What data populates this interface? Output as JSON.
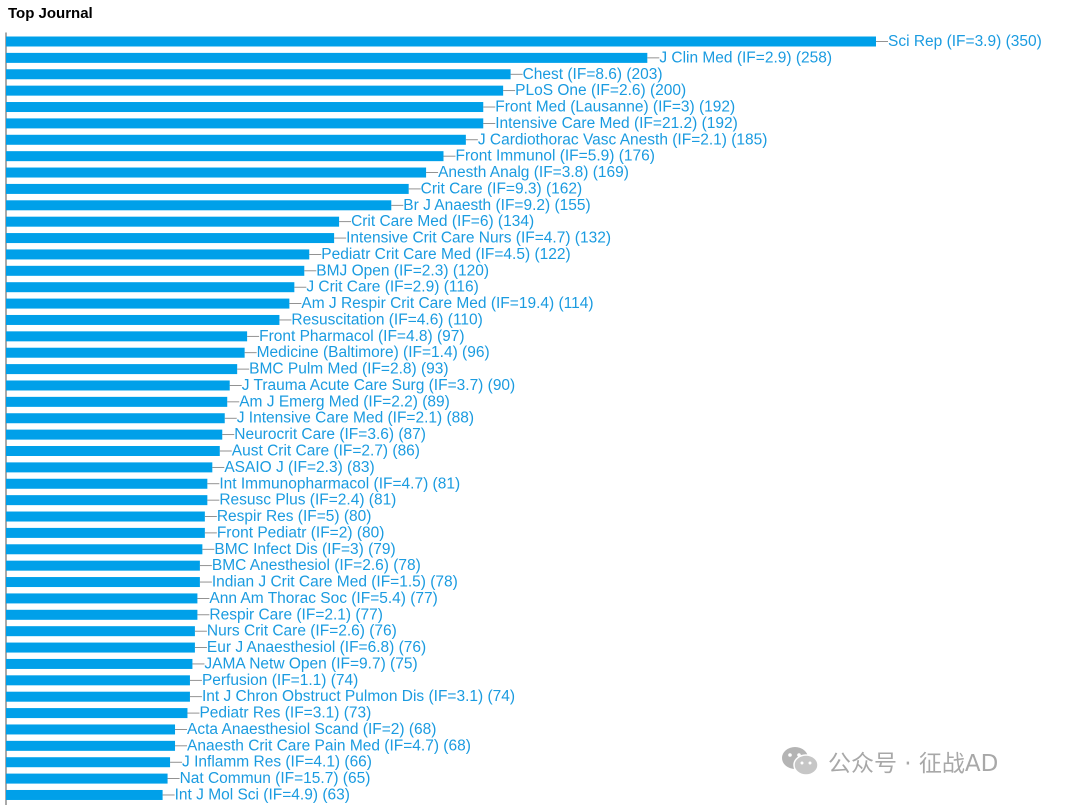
{
  "title": "Top Journal",
  "watermark": {
    "text": "公众号 · 征战AD",
    "icon": "wechat-icon"
  },
  "colors": {
    "bar": "#00a0e9",
    "label": "#1a9be0",
    "axis": "#555555"
  },
  "chart_data": {
    "type": "bar",
    "orientation": "horizontal",
    "title": "Top Journal",
    "xlim": [
      0,
      350
    ],
    "grid": false,
    "categories": [
      "Sci Rep (IF=3.9) (350)",
      "J Clin Med (IF=2.9) (258)",
      "Chest (IF=8.6) (203)",
      "PLoS One (IF=2.6) (200)",
      "Front Med (Lausanne) (IF=3) (192)",
      "Intensive Care Med (IF=21.2) (192)",
      "J Cardiothorac Vasc Anesth (IF=2.1) (185)",
      "Front Immunol (IF=5.9) (176)",
      "Anesth Analg (IF=3.8) (169)",
      "Crit Care (IF=9.3) (162)",
      "Br J Anaesth (IF=9.2) (155)",
      "Crit Care Med (IF=6) (134)",
      "Intensive Crit Care Nurs (IF=4.7) (132)",
      "Pediatr Crit Care Med (IF=4.5) (122)",
      "BMJ Open (IF=2.3) (120)",
      "J Crit Care (IF=2.9) (116)",
      "Am J Respir Crit Care Med (IF=19.4) (114)",
      "Resuscitation (IF=4.6) (110)",
      "Front Pharmacol (IF=4.8) (97)",
      "Medicine (Baltimore) (IF=1.4) (96)",
      "BMC Pulm Med (IF=2.8) (93)",
      "J Trauma Acute Care Surg (IF=3.7) (90)",
      "Am J Emerg Med (IF=2.2) (89)",
      "J Intensive Care Med (IF=2.1) (88)",
      "Neurocrit Care (IF=3.6) (87)",
      "Aust Crit Care (IF=2.7) (86)",
      "ASAIO J (IF=2.3) (83)",
      "Int Immunopharmacol (IF=4.7) (81)",
      "Resusc Plus (IF=2.4) (81)",
      "Respir Res (IF=5) (80)",
      "Front Pediatr (IF=2) (80)",
      "BMC Infect Dis (IF=3) (79)",
      "BMC Anesthesiol (IF=2.6) (78)",
      "Indian J Crit Care Med (IF=1.5) (78)",
      "Ann Am Thorac Soc (IF=5.4) (77)",
      "Respir Care (IF=2.1) (77)",
      "Nurs Crit Care (IF=2.6) (76)",
      "Eur J Anaesthesiol (IF=6.8) (76)",
      "JAMA Netw Open (IF=9.7) (75)",
      "Perfusion (IF=1.1) (74)",
      "Int J Chron Obstruct Pulmon Dis (IF=3.1) (74)",
      "Pediatr Res (IF=3.1) (73)",
      "Acta Anaesthesiol Scand (IF=2) (68)",
      "Anaesth Crit Care Pain Med (IF=4.7) (68)",
      "J Inflamm Res (IF=4.1) (66)",
      "Nat Commun (IF=15.7) (65)",
      "Int J Mol Sci (IF=4.9) (63)"
    ],
    "values": [
      350,
      258,
      203,
      200,
      192,
      192,
      185,
      176,
      169,
      162,
      155,
      134,
      132,
      122,
      120,
      116,
      114,
      110,
      97,
      96,
      93,
      90,
      89,
      88,
      87,
      86,
      83,
      81,
      81,
      80,
      80,
      79,
      78,
      78,
      77,
      77,
      76,
      76,
      75,
      74,
      74,
      73,
      68,
      68,
      66,
      65,
      63
    ]
  }
}
